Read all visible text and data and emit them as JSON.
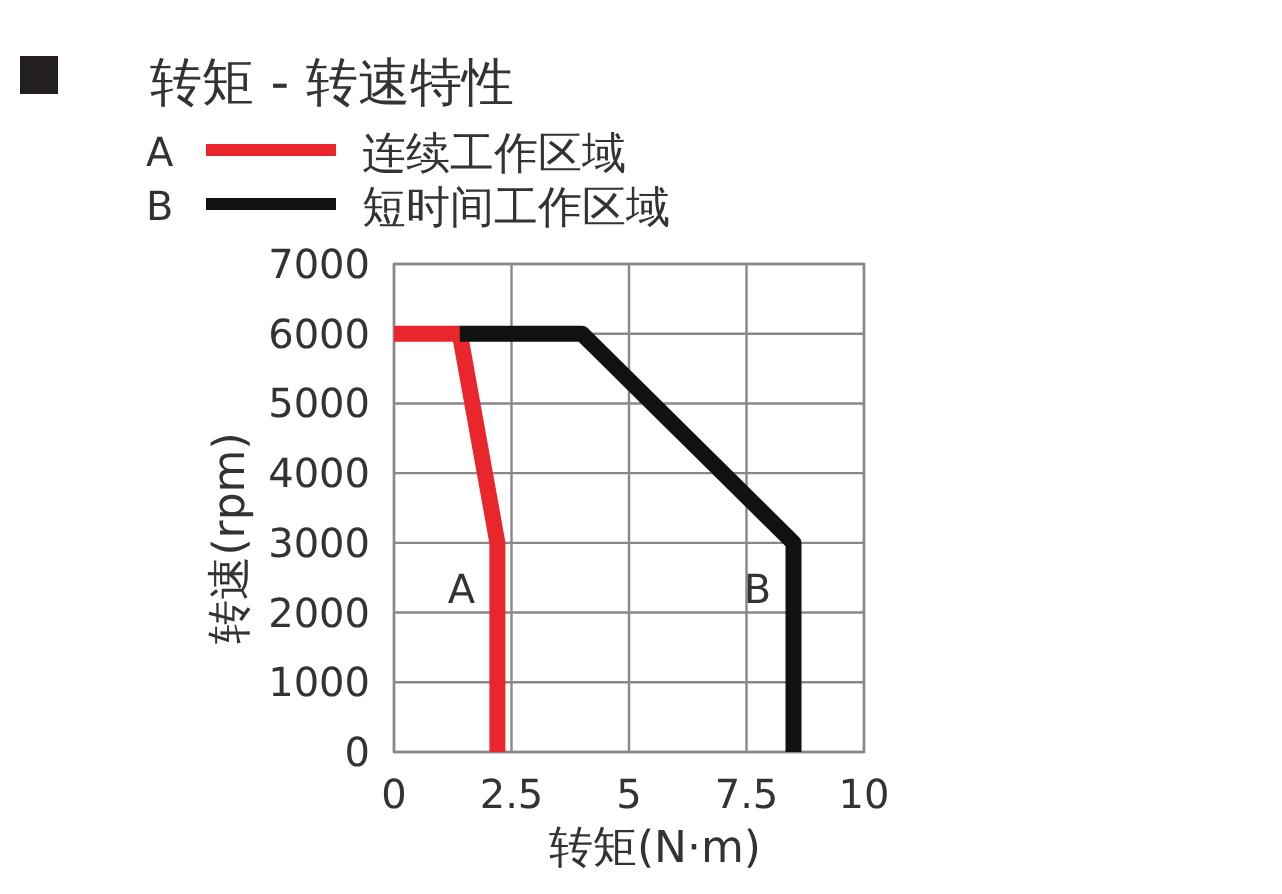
{
  "chart_data": {
    "type": "line",
    "title": "转矩 - 转速特性",
    "xlabel": "转矩(N·m)",
    "ylabel": "转速(rpm)",
    "series": [
      {
        "name": "连续工作区域",
        "color": "#e8262b",
        "x": [
          0,
          1.4,
          2.2,
          2.2
        ],
        "values": [
          6000,
          6000,
          3000,
          0
        ]
      },
      {
        "name": "短时间工作区域",
        "color": "#111111",
        "x": [
          1.4,
          4.0,
          8.5,
          8.5
        ],
        "values": [
          6000,
          6000,
          3000,
          0
        ]
      }
    ],
    "annotations": [
      "A",
      "B",
      "A",
      "B"
    ],
    "xlim": [
      0,
      10
    ],
    "xticks": [
      0,
      2.5,
      5,
      7.5,
      10
    ],
    "ylim": [
      0,
      7000
    ],
    "yticks": [
      0,
      1000,
      2000,
      3000,
      4000,
      5000,
      6000,
      7000
    ],
    "grid": true,
    "legend": "top left",
    "marker": "none",
    "line_style": "solid"
  }
}
